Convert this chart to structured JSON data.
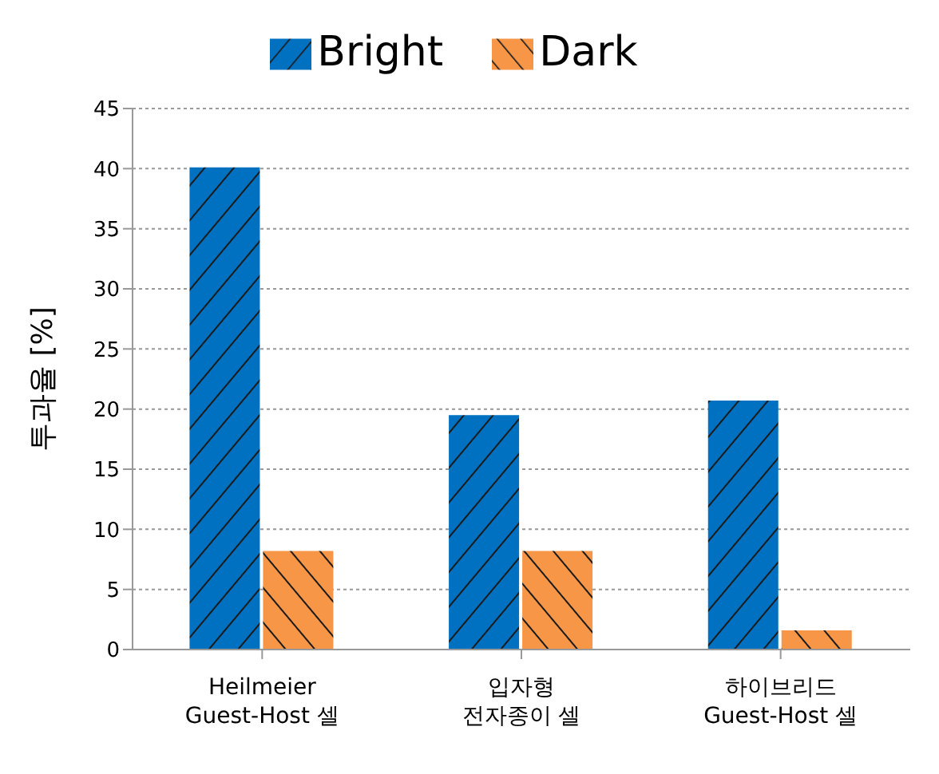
{
  "chart_data": {
    "type": "bar",
    "ylabel": "투과율 [%]",
    "categories": [
      "Heilmeier\nGuest-Host 셀",
      "입자형\n전자종이 셀",
      "하이브리드\nGuest-Host 셀"
    ],
    "series": [
      {
        "name": "Bright",
        "color": "#0070c0",
        "values": [
          40.1,
          19.5,
          20.7
        ]
      },
      {
        "name": "Dark",
        "color": "#f79646",
        "values": [
          8.2,
          8.2,
          1.6
        ]
      }
    ],
    "ylim": [
      0,
      45
    ],
    "yticks": [
      0,
      5,
      10,
      15,
      20,
      25,
      30,
      35,
      40,
      45
    ],
    "grid": "y",
    "legend": "top"
  }
}
